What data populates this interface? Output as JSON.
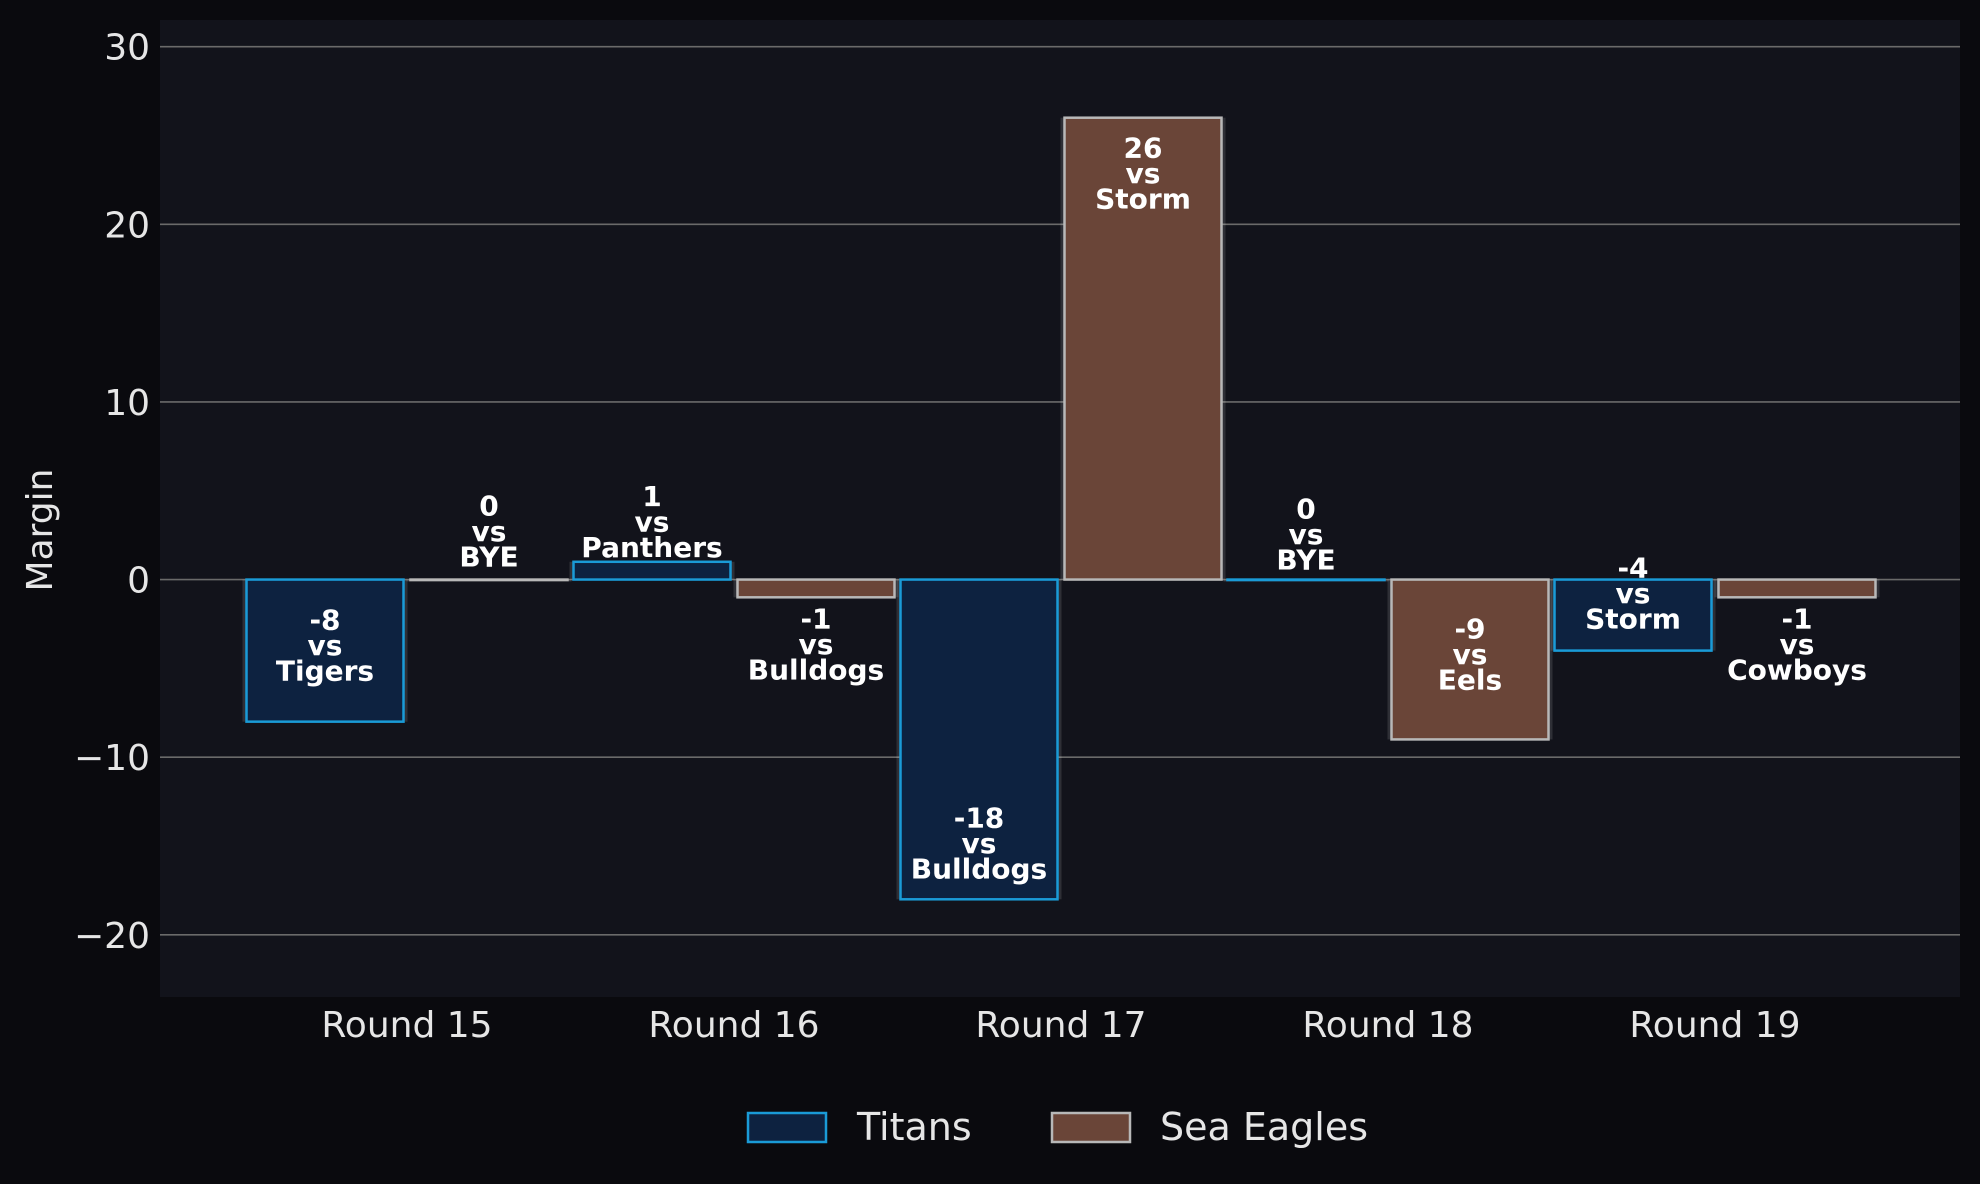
{
  "chart_data": {
    "type": "bar",
    "title": "",
    "xlabel": "",
    "ylabel": "Margin",
    "ylim": [
      -23.5,
      31.5
    ],
    "yticks": [
      -20,
      -10,
      0,
      10,
      20,
      30
    ],
    "ytick_labels": [
      "−20",
      "−10",
      "0",
      "10",
      "20",
      "30"
    ],
    "grid": "horizontal",
    "legend_position": "bottom-center",
    "categories": [
      "Round 15",
      "Round 16",
      "Round 17",
      "Round 18",
      "Round 19"
    ],
    "series": [
      {
        "name": "Titans",
        "fill": "#0d2240",
        "stroke": "#1a9bd7",
        "values": [
          -8,
          1,
          -18,
          0,
          -4
        ],
        "opponents": [
          "Tigers",
          "Panthers",
          "Bulldogs",
          "BYE",
          "Storm"
        ]
      },
      {
        "name": "Sea Eagles",
        "fill": "#6a4538",
        "stroke": "#b8b8b8",
        "values": [
          0,
          -1,
          26,
          -9,
          -1
        ],
        "opponents": [
          "BYE",
          "Bulldogs",
          "Storm",
          "Eels",
          "Cowboys"
        ]
      }
    ],
    "label_connector": "vs"
  },
  "colors": {
    "page_background": "#0a0a0e",
    "plot_background": "#12131b",
    "grid": "#6a6a6a",
    "text": "#e6e6e6"
  }
}
